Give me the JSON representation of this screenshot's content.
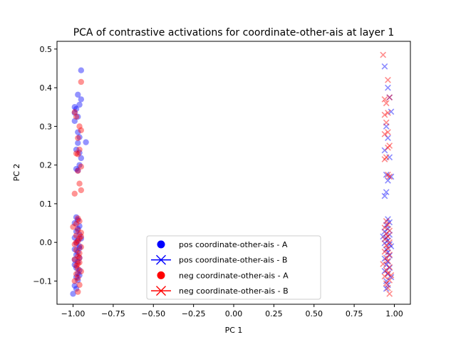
{
  "chart_data": {
    "type": "scatter",
    "title": "PCA of contrastive activations for coordinate-other-ais at layer 1",
    "xlabel": "PC 1",
    "ylabel": "PC 2",
    "xlim": [
      -1.1,
      1.1
    ],
    "ylim": [
      -0.16,
      0.52
    ],
    "xticks": [
      -1.0,
      -0.75,
      -0.5,
      -0.25,
      0.0,
      0.25,
      0.5,
      0.75,
      1.0
    ],
    "xtick_labels": [
      "−1.00",
      "−0.75",
      "−0.50",
      "−0.25",
      "0.00",
      "0.25",
      "0.50",
      "0.75",
      "1.00"
    ],
    "yticks": [
      -0.1,
      0.0,
      0.1,
      0.2,
      0.3,
      0.4,
      0.5
    ],
    "ytick_labels": [
      "−0.1",
      "0.0",
      "0.1",
      "0.2",
      "0.3",
      "0.4",
      "0.5"
    ],
    "grid": false,
    "legend_position": "lower center",
    "series": [
      {
        "name": "pos coordinate-other-ais - A",
        "marker": "circle",
        "color": "#0000ff",
        "points": [
          [
            -0.95,
            0.445
          ],
          [
            -0.97,
            0.382
          ],
          [
            -0.95,
            0.37
          ],
          [
            -0.99,
            0.35
          ],
          [
            -0.98,
            0.345
          ],
          [
            -0.96,
            0.356
          ],
          [
            -0.99,
            0.335
          ],
          [
            -0.97,
            0.325
          ],
          [
            -0.99,
            0.314
          ],
          [
            -0.97,
            0.285
          ],
          [
            -0.96,
            0.272
          ],
          [
            -0.92,
            0.259
          ],
          [
            -0.97,
            0.257
          ],
          [
            -0.98,
            0.24
          ],
          [
            -0.96,
            0.232
          ],
          [
            -0.95,
            0.218
          ],
          [
            -0.96,
            0.2
          ],
          [
            -0.98,
            0.19
          ],
          [
            -0.97,
            0.186
          ],
          [
            -0.98,
            0.065
          ],
          [
            -0.97,
            0.058
          ],
          [
            -0.99,
            0.05
          ],
          [
            -0.96,
            0.042
          ],
          [
            -0.97,
            0.035
          ],
          [
            -0.98,
            0.028
          ],
          [
            -0.96,
            0.02
          ],
          [
            -0.99,
            0.012
          ],
          [
            -0.97,
            0.005
          ],
          [
            -0.98,
            -0.002
          ],
          [
            -0.96,
            -0.01
          ],
          [
            -0.99,
            -0.018
          ],
          [
            -0.97,
            -0.025
          ],
          [
            -0.98,
            -0.032
          ],
          [
            -0.96,
            -0.04
          ],
          [
            -0.97,
            -0.05
          ],
          [
            -0.99,
            -0.058
          ],
          [
            -0.98,
            -0.066
          ],
          [
            -0.96,
            -0.072
          ],
          [
            -0.97,
            -0.08
          ],
          [
            -0.98,
            -0.09
          ],
          [
            -0.97,
            -0.098
          ],
          [
            -0.99,
            -0.112
          ],
          [
            -0.98,
            -0.12
          ],
          [
            -1.0,
            -0.133
          ],
          [
            -0.96,
            -0.015
          ],
          [
            -0.95,
            0.01
          ],
          [
            -0.99,
            -0.045
          ],
          [
            -0.96,
            -0.085
          ]
        ]
      },
      {
        "name": "pos coordinate-other-ais - B",
        "marker": "x",
        "color": "#0000ff",
        "points": [
          [
            0.94,
            0.455
          ],
          [
            0.96,
            0.4
          ],
          [
            0.97,
            0.375
          ],
          [
            0.98,
            0.338
          ],
          [
            0.95,
            0.3
          ],
          [
            0.96,
            0.27
          ],
          [
            0.94,
            0.238
          ],
          [
            0.97,
            0.22
          ],
          [
            0.95,
            0.175
          ],
          [
            0.98,
            0.17
          ],
          [
            0.96,
            0.16
          ],
          [
            0.95,
            0.13
          ],
          [
            0.94,
            0.12
          ],
          [
            0.96,
            0.06
          ],
          [
            0.97,
            0.052
          ],
          [
            0.95,
            0.045
          ],
          [
            0.96,
            0.035
          ],
          [
            0.94,
            0.028
          ],
          [
            0.97,
            0.02
          ],
          [
            0.95,
            0.012
          ],
          [
            0.96,
            0.005
          ],
          [
            0.94,
            -0.002
          ],
          [
            0.98,
            -0.01
          ],
          [
            0.95,
            -0.018
          ],
          [
            0.96,
            -0.026
          ],
          [
            0.97,
            -0.034
          ],
          [
            0.94,
            -0.042
          ],
          [
            0.96,
            -0.05
          ],
          [
            0.95,
            -0.058
          ],
          [
            0.97,
            -0.066
          ],
          [
            0.94,
            -0.074
          ],
          [
            0.96,
            -0.082
          ],
          [
            0.98,
            -0.09
          ],
          [
            0.95,
            -0.1
          ],
          [
            0.96,
            -0.11
          ],
          [
            0.95,
            -0.12
          ],
          [
            0.97,
            -0.005
          ],
          [
            0.93,
            0.015
          ]
        ]
      },
      {
        "name": "neg coordinate-other-ais - A",
        "marker": "circle",
        "color": "#ff0000",
        "points": [
          [
            -0.95,
            0.415
          ],
          [
            -0.99,
            0.337
          ],
          [
            -0.98,
            0.325
          ],
          [
            -0.96,
            0.3
          ],
          [
            -0.95,
            0.29
          ],
          [
            -0.97,
            0.27
          ],
          [
            -0.96,
            0.24
          ],
          [
            -0.98,
            0.23
          ],
          [
            -0.97,
            0.228
          ],
          [
            -0.95,
            0.196
          ],
          [
            -0.97,
            0.185
          ],
          [
            -0.96,
            0.152
          ],
          [
            -0.95,
            0.135
          ],
          [
            -0.99,
            0.126
          ],
          [
            -0.97,
            0.062
          ],
          [
            -0.96,
            0.055
          ],
          [
            -0.98,
            0.048
          ],
          [
            -1.0,
            0.04
          ],
          [
            -0.97,
            0.032
          ],
          [
            -0.95,
            0.025
          ],
          [
            -0.98,
            0.018
          ],
          [
            -0.96,
            0.01
          ],
          [
            -0.97,
            0.003
          ],
          [
            -0.99,
            -0.005
          ],
          [
            -0.95,
            -0.012
          ],
          [
            -0.98,
            -0.02
          ],
          [
            -0.96,
            -0.028
          ],
          [
            -0.97,
            -0.036
          ],
          [
            -0.99,
            -0.044
          ],
          [
            -0.96,
            -0.052
          ],
          [
            -0.98,
            -0.06
          ],
          [
            -0.97,
            -0.068
          ],
          [
            -0.95,
            -0.075
          ],
          [
            -0.98,
            -0.082
          ],
          [
            -0.97,
            -0.092
          ],
          [
            -0.99,
            -0.1
          ],
          [
            -0.96,
            -0.11
          ],
          [
            -0.97,
            -0.128
          ],
          [
            -0.95,
            0.015
          ],
          [
            -0.96,
            -0.04
          ],
          [
            -0.98,
            0.0
          ],
          [
            -0.97,
            -0.055
          ]
        ]
      },
      {
        "name": "neg coordinate-other-ais - B",
        "marker": "x",
        "color": "#ff0000",
        "points": [
          [
            0.93,
            0.485
          ],
          [
            0.96,
            0.42
          ],
          [
            0.97,
            0.375
          ],
          [
            0.94,
            0.37
          ],
          [
            0.95,
            0.36
          ],
          [
            0.96,
            0.335
          ],
          [
            0.94,
            0.33
          ],
          [
            0.95,
            0.31
          ],
          [
            0.96,
            0.285
          ],
          [
            0.94,
            0.28
          ],
          [
            0.97,
            0.25
          ],
          [
            0.96,
            0.245
          ],
          [
            0.95,
            0.22
          ],
          [
            0.94,
            0.215
          ],
          [
            0.96,
            0.175
          ],
          [
            0.97,
            0.17
          ],
          [
            0.95,
            0.055
          ],
          [
            0.96,
            0.045
          ],
          [
            0.94,
            0.038
          ],
          [
            0.97,
            0.03
          ],
          [
            0.95,
            0.022
          ],
          [
            0.96,
            0.015
          ],
          [
            0.94,
            0.008
          ],
          [
            0.97,
            0.0
          ],
          [
            0.95,
            -0.008
          ],
          [
            0.96,
            -0.016
          ],
          [
            0.94,
            -0.024
          ],
          [
            0.97,
            -0.032
          ],
          [
            0.95,
            -0.04
          ],
          [
            0.96,
            -0.048
          ],
          [
            0.93,
            -0.056
          ],
          [
            0.97,
            -0.064
          ],
          [
            0.95,
            -0.072
          ],
          [
            0.96,
            -0.08
          ],
          [
            0.94,
            -0.088
          ],
          [
            0.97,
            -0.098
          ],
          [
            0.95,
            -0.106
          ],
          [
            0.96,
            -0.118
          ],
          [
            0.97,
            -0.133
          ],
          [
            0.98,
            -0.085
          ]
        ]
      }
    ]
  }
}
